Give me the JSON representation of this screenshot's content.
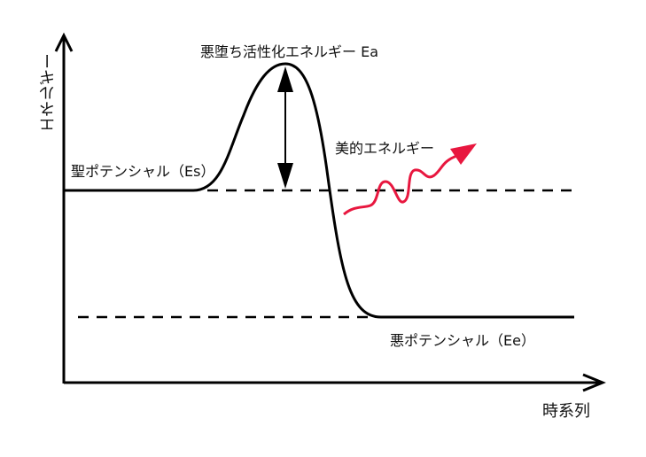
{
  "axes": {
    "y_label": "エネルギー",
    "x_label": "時系列"
  },
  "labels": {
    "activation": "悪堕ち活性化エネルギー Ea",
    "holy_potential": "聖ポテンシャル（Es）",
    "evil_potential": "悪ポテンシャル（Ee）",
    "beauty_energy": "美的エネルギー"
  },
  "colors": {
    "curve": "#000000",
    "wave_arrow": "#e8173f"
  }
}
